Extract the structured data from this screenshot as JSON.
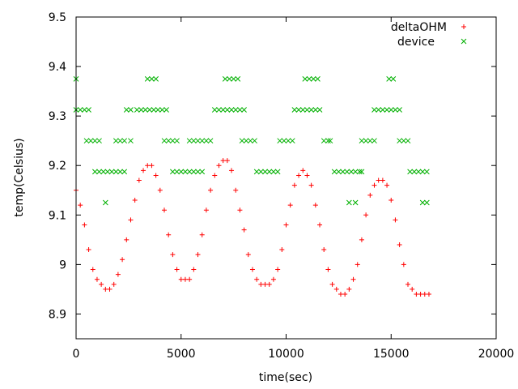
{
  "chart_data": {
    "type": "scatter",
    "title": "",
    "xlabel": "time(sec)",
    "ylabel": "temp(Celsius)",
    "xlim": [
      0,
      20000
    ],
    "ylim": [
      8.85,
      9.5
    ],
    "x_ticks": [
      0,
      5000,
      10000,
      15000,
      20000
    ],
    "x_tick_labels": [
      "0",
      "5000",
      "10000",
      "15000",
      "20000"
    ],
    "y_ticks": [
      8.9,
      9.0,
      9.1,
      9.2,
      9.3,
      9.4,
      9.5
    ],
    "y_tick_labels": [
      "8.9",
      "9",
      "9.1",
      "9.2",
      "9.3",
      "9.4",
      "9.5"
    ],
    "grid": false,
    "legend_position": "top-right",
    "colors": {
      "deltaOHM": "#ff0000",
      "device": "#00b000"
    },
    "series": [
      {
        "name": "deltaOHM",
        "marker": "+",
        "points": [
          [
            0,
            9.15
          ],
          [
            200,
            9.12
          ],
          [
            400,
            9.08
          ],
          [
            600,
            9.03
          ],
          [
            800,
            8.99
          ],
          [
            1000,
            8.97
          ],
          [
            1200,
            8.96
          ],
          [
            1400,
            8.95
          ],
          [
            1600,
            8.95
          ],
          [
            1800,
            8.96
          ],
          [
            2000,
            8.98
          ],
          [
            2200,
            9.01
          ],
          [
            2400,
            9.05
          ],
          [
            2600,
            9.09
          ],
          [
            2800,
            9.13
          ],
          [
            3000,
            9.17
          ],
          [
            3200,
            9.19
          ],
          [
            3400,
            9.2
          ],
          [
            3600,
            9.2
          ],
          [
            3800,
            9.18
          ],
          [
            4000,
            9.15
          ],
          [
            4200,
            9.11
          ],
          [
            4400,
            9.06
          ],
          [
            4600,
            9.02
          ],
          [
            4800,
            8.99
          ],
          [
            5000,
            8.97
          ],
          [
            5200,
            8.97
          ],
          [
            5400,
            8.97
          ],
          [
            5600,
            8.99
          ],
          [
            5800,
            9.02
          ],
          [
            6000,
            9.06
          ],
          [
            6200,
            9.11
          ],
          [
            6400,
            9.15
          ],
          [
            6600,
            9.18
          ],
          [
            6800,
            9.2
          ],
          [
            7000,
            9.21
          ],
          [
            7200,
            9.21
          ],
          [
            7400,
            9.19
          ],
          [
            7600,
            9.15
          ],
          [
            7800,
            9.11
          ],
          [
            8000,
            9.07
          ],
          [
            8200,
            9.02
          ],
          [
            8400,
            8.99
          ],
          [
            8600,
            8.97
          ],
          [
            8800,
            8.96
          ],
          [
            9000,
            8.96
          ],
          [
            9200,
            8.96
          ],
          [
            9400,
            8.97
          ],
          [
            9600,
            8.99
          ],
          [
            9800,
            9.03
          ],
          [
            10000,
            9.08
          ],
          [
            10200,
            9.12
          ],
          [
            10400,
            9.16
          ],
          [
            10600,
            9.18
          ],
          [
            10800,
            9.19
          ],
          [
            11000,
            9.18
          ],
          [
            11200,
            9.16
          ],
          [
            11400,
            9.12
          ],
          [
            11600,
            9.08
          ],
          [
            11800,
            9.03
          ],
          [
            12000,
            8.99
          ],
          [
            12200,
            8.96
          ],
          [
            12400,
            8.95
          ],
          [
            12600,
            8.94
          ],
          [
            12800,
            8.94
          ],
          [
            13000,
            8.95
          ],
          [
            13200,
            8.97
          ],
          [
            13400,
            9.0
          ],
          [
            13600,
            9.05
          ],
          [
            13800,
            9.1
          ],
          [
            14000,
            9.14
          ],
          [
            14200,
            9.16
          ],
          [
            14400,
            9.17
          ],
          [
            14600,
            9.17
          ],
          [
            14800,
            9.16
          ],
          [
            15000,
            9.13
          ],
          [
            15200,
            9.09
          ],
          [
            15400,
            9.04
          ],
          [
            15600,
            9.0
          ],
          [
            15800,
            8.96
          ],
          [
            16000,
            8.95
          ],
          [
            16200,
            8.94
          ],
          [
            16400,
            8.94
          ],
          [
            16600,
            8.94
          ],
          [
            16800,
            8.94
          ]
        ]
      },
      {
        "name": "device",
        "marker": "x",
        "points": [
          [
            0,
            9.375
          ],
          [
            0,
            9.3125
          ],
          [
            200,
            9.3125
          ],
          [
            400,
            9.3125
          ],
          [
            600,
            9.3125
          ],
          [
            500,
            9.25
          ],
          [
            700,
            9.25
          ],
          [
            900,
            9.25
          ],
          [
            1100,
            9.25
          ],
          [
            900,
            9.1875
          ],
          [
            1100,
            9.1875
          ],
          [
            1300,
            9.1875
          ],
          [
            1500,
            9.1875
          ],
          [
            1700,
            9.1875
          ],
          [
            1900,
            9.1875
          ],
          [
            2100,
            9.1875
          ],
          [
            2300,
            9.1875
          ],
          [
            1400,
            9.125
          ],
          [
            1900,
            9.25
          ],
          [
            2100,
            9.25
          ],
          [
            2300,
            9.25
          ],
          [
            2600,
            9.25
          ],
          [
            2400,
            9.3125
          ],
          [
            2600,
            9.3125
          ],
          [
            2900,
            9.3125
          ],
          [
            3100,
            9.3125
          ],
          [
            3300,
            9.3125
          ],
          [
            3500,
            9.3125
          ],
          [
            3700,
            9.3125
          ],
          [
            3900,
            9.3125
          ],
          [
            4100,
            9.3125
          ],
          [
            4300,
            9.3125
          ],
          [
            3400,
            9.375
          ],
          [
            3600,
            9.375
          ],
          [
            3800,
            9.375
          ],
          [
            4200,
            9.25
          ],
          [
            4400,
            9.25
          ],
          [
            4600,
            9.25
          ],
          [
            4800,
            9.25
          ],
          [
            4600,
            9.1875
          ],
          [
            4800,
            9.1875
          ],
          [
            5000,
            9.1875
          ],
          [
            5200,
            9.1875
          ],
          [
            5400,
            9.1875
          ],
          [
            5600,
            9.1875
          ],
          [
            5800,
            9.1875
          ],
          [
            6000,
            9.1875
          ],
          [
            5400,
            9.25
          ],
          [
            5600,
            9.25
          ],
          [
            5800,
            9.25
          ],
          [
            6000,
            9.25
          ],
          [
            6200,
            9.25
          ],
          [
            6400,
            9.25
          ],
          [
            6600,
            9.3125
          ],
          [
            6800,
            9.3125
          ],
          [
            7000,
            9.3125
          ],
          [
            7200,
            9.3125
          ],
          [
            7400,
            9.3125
          ],
          [
            7600,
            9.3125
          ],
          [
            7800,
            9.3125
          ],
          [
            8000,
            9.3125
          ],
          [
            7100,
            9.375
          ],
          [
            7300,
            9.375
          ],
          [
            7500,
            9.375
          ],
          [
            7700,
            9.375
          ],
          [
            7900,
            9.25
          ],
          [
            8100,
            9.25
          ],
          [
            8300,
            9.25
          ],
          [
            8500,
            9.25
          ],
          [
            8600,
            9.1875
          ],
          [
            8800,
            9.1875
          ],
          [
            9000,
            9.1875
          ],
          [
            9200,
            9.1875
          ],
          [
            9400,
            9.1875
          ],
          [
            9600,
            9.1875
          ],
          [
            9700,
            9.25
          ],
          [
            9900,
            9.25
          ],
          [
            10100,
            9.25
          ],
          [
            10300,
            9.25
          ],
          [
            10400,
            9.3125
          ],
          [
            10600,
            9.3125
          ],
          [
            10800,
            9.3125
          ],
          [
            11000,
            9.3125
          ],
          [
            11200,
            9.3125
          ],
          [
            11400,
            9.3125
          ],
          [
            11600,
            9.3125
          ],
          [
            10900,
            9.375
          ],
          [
            11100,
            9.375
          ],
          [
            11300,
            9.375
          ],
          [
            11500,
            9.375
          ],
          [
            11800,
            9.25
          ],
          [
            12000,
            9.25
          ],
          [
            12100,
            9.25
          ],
          [
            12300,
            9.1875
          ],
          [
            12500,
            9.1875
          ],
          [
            12700,
            9.1875
          ],
          [
            12900,
            9.1875
          ],
          [
            13100,
            9.1875
          ],
          [
            13300,
            9.1875
          ],
          [
            13500,
            9.1875
          ],
          [
            13600,
            9.1875
          ],
          [
            13000,
            9.125
          ],
          [
            13300,
            9.125
          ],
          [
            13600,
            9.25
          ],
          [
            13800,
            9.25
          ],
          [
            14000,
            9.25
          ],
          [
            14200,
            9.25
          ],
          [
            14200,
            9.3125
          ],
          [
            14400,
            9.3125
          ],
          [
            14600,
            9.3125
          ],
          [
            14800,
            9.3125
          ],
          [
            15000,
            9.3125
          ],
          [
            15200,
            9.3125
          ],
          [
            15400,
            9.3125
          ],
          [
            14900,
            9.375
          ],
          [
            15100,
            9.375
          ],
          [
            15400,
            9.25
          ],
          [
            15600,
            9.25
          ],
          [
            15800,
            9.25
          ],
          [
            15900,
            9.1875
          ],
          [
            16100,
            9.1875
          ],
          [
            16300,
            9.1875
          ],
          [
            16500,
            9.1875
          ],
          [
            16700,
            9.1875
          ],
          [
            16500,
            9.125
          ],
          [
            16700,
            9.125
          ]
        ]
      }
    ]
  }
}
